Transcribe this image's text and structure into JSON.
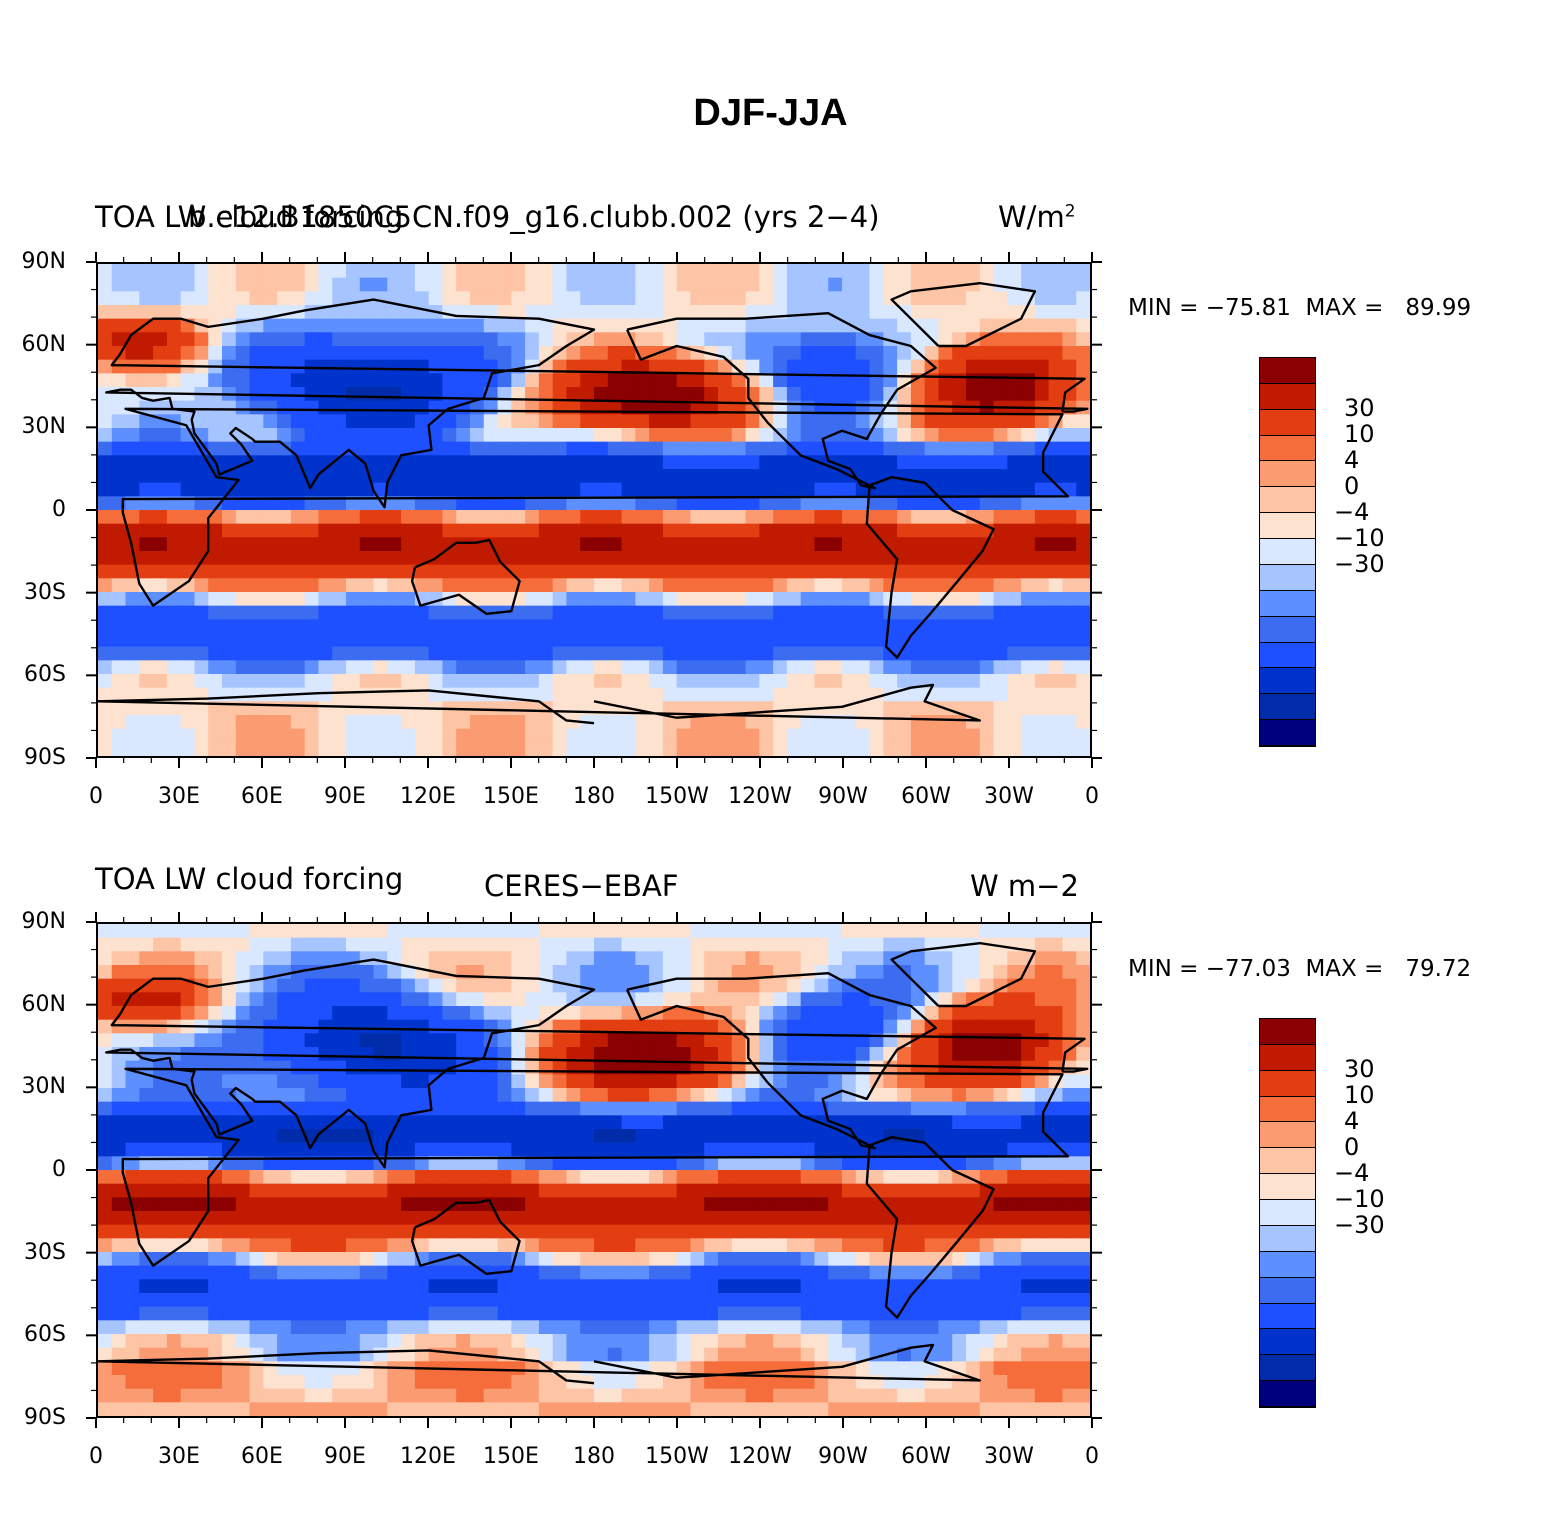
{
  "main_title": "DJF-JJA",
  "colorbar_palette": [
    "#00007f",
    "#002ca9",
    "#0033cc",
    "#1f50ff",
    "#3c6cf0",
    "#5e8fff",
    "#a6c4ff",
    "#d9e8ff",
    "#fde2d0",
    "#fdc4a6",
    "#fb9b72",
    "#f46d3b",
    "#e33e12",
    "#c01a00",
    "#8b0000"
  ],
  "colorbar_labels": [
    "30",
    "10",
    "4",
    "0",
    "−4",
    "−10",
    "−30"
  ],
  "lat_labels": [
    "90N",
    "60N",
    "30N",
    "0",
    "30S",
    "60S",
    "90S"
  ],
  "lon_labels": [
    "0",
    "30E",
    "60E",
    "90E",
    "120E",
    "150E",
    "180",
    "150W",
    "120W",
    "90W",
    "60W",
    "30W",
    "0"
  ],
  "panels": [
    {
      "left_title": "TOA LW cloud forcing",
      "center_title": "b.e12.B1850C5CN.f09_g16.clubb.002 (yrs 2−4)",
      "right_title": "W/m",
      "right_title_sup": "2",
      "minmax": "MIN = −75.81  MAX =   89.99"
    },
    {
      "left_title": "TOA LW cloud forcing",
      "center_title": "CERES−EBAF",
      "right_title": "W m−2",
      "right_title_sup": "",
      "minmax": "MIN = −77.03  MAX =   79.72"
    }
  ]
}
